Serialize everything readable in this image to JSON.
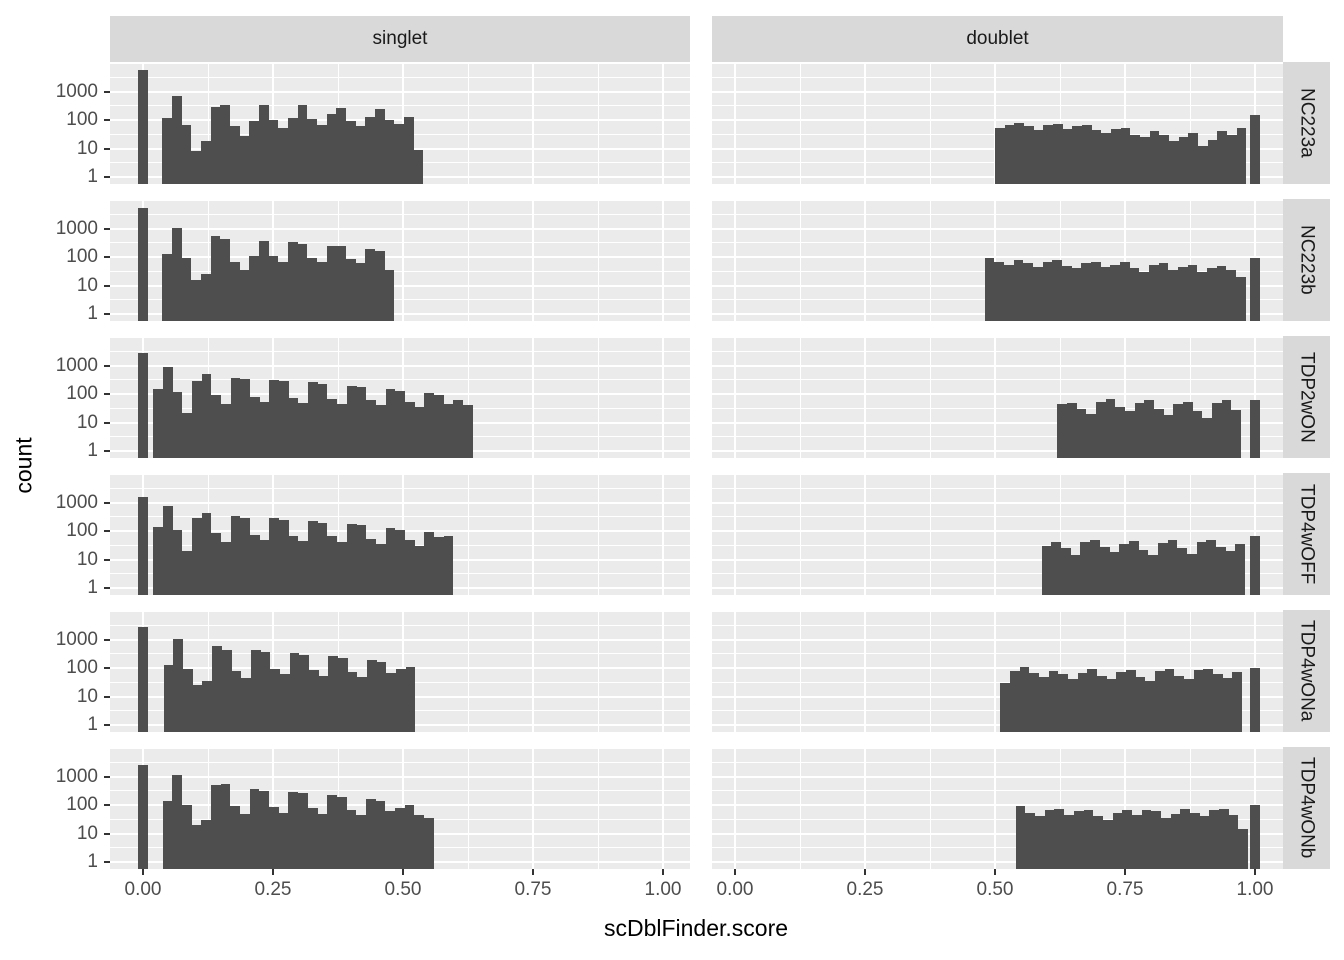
{
  "figure": {
    "x_axis_title": "scDblFinder.score",
    "y_axis_title": "count",
    "col_labels": [
      "singlet",
      "doublet"
    ],
    "row_labels": [
      "NC223a",
      "NC223b",
      "TDP2wON",
      "TDP4wOFF",
      "TDP4wONa",
      "TDP4wONb"
    ],
    "x_tick_labels": [
      "0.00",
      "0.25",
      "0.50",
      "0.75",
      "1.00"
    ],
    "x_tick_values": [
      0,
      0.25,
      0.5,
      0.75,
      1.0
    ],
    "y_tick_labels": [
      "1000",
      "100",
      "10",
      "1"
    ],
    "y_tick_values": [
      1000,
      100,
      10,
      1
    ],
    "colors": {
      "bar": "#4e4e4e",
      "panel_bg": "#ebebeb",
      "strip_bg": "#d9d9d9",
      "grid": "#ffffff",
      "tick_text": "#4d4d4d",
      "title_text": "#000000"
    }
  },
  "chart_data": {
    "type": "bar",
    "subtype": "faceted-histogram",
    "facet_cols": [
      "singlet",
      "doublet"
    ],
    "facet_rows": [
      "NC223a",
      "NC223b",
      "TDP2wON",
      "TDP4wOFF",
      "TDP4wONa",
      "TDP4wONb"
    ],
    "xlabel": "scDblFinder.score",
    "ylabel": "count",
    "y_scale": "log10",
    "ylim": [
      0.56,
      11000
    ],
    "x_axis_range_shown": [
      -0.06,
      1.05
    ],
    "binwidth": 0.0186,
    "major_y_gridlines": [
      1,
      10,
      100,
      1000,
      10000
    ],
    "minor_y_gridlines": [
      3.16,
      31.6,
      316,
      3162
    ],
    "major_x_gridlines": [
      0,
      0.25,
      0.5,
      0.75,
      1.0
    ],
    "minor_x_gridlines": [
      0.125,
      0.375,
      0.625,
      0.875
    ],
    "panels": [
      {
        "row": "NC223a",
        "col": "singlet",
        "zero_spike": 6000,
        "start": 0.037,
        "counts": [
          120,
          700,
          70,
          8,
          18,
          290,
          330,
          60,
          28,
          95,
          330,
          100,
          55,
          115,
          340,
          110,
          65,
          165,
          270,
          90,
          60,
          125,
          240,
          100,
          75,
          130,
          9
        ]
      },
      {
        "row": "NC223a",
        "col": "doublet",
        "one_spike": 150,
        "start": 0.5,
        "counts": [
          55,
          70,
          80,
          60,
          45,
          70,
          75,
          50,
          60,
          70,
          45,
          35,
          50,
          55,
          30,
          25,
          40,
          30,
          18,
          25,
          35,
          12,
          20,
          40,
          30,
          55
        ]
      },
      {
        "row": "NC223b",
        "col": "singlet",
        "zero_spike": 5500,
        "start": 0.037,
        "counts": [
          130,
          1100,
          90,
          16,
          25,
          550,
          420,
          70,
          35,
          110,
          380,
          110,
          70,
          330,
          300,
          95,
          65,
          240,
          250,
          85,
          60,
          190,
          170,
          35
        ]
      },
      {
        "row": "NC223b",
        "col": "doublet",
        "one_spike": 90,
        "start": 0.48,
        "counts": [
          90,
          70,
          55,
          80,
          60,
          45,
          70,
          80,
          50,
          40,
          60,
          70,
          45,
          55,
          65,
          40,
          30,
          55,
          60,
          35,
          45,
          55,
          30,
          40,
          50,
          35,
          20
        ]
      },
      {
        "row": "TDP2wON",
        "col": "singlet",
        "zero_spike": 2800,
        "start": 0.02,
        "counts": [
          150,
          900,
          120,
          22,
          300,
          500,
          90,
          45,
          380,
          330,
          80,
          55,
          310,
          280,
          75,
          50,
          260,
          230,
          70,
          45,
          200,
          180,
          60,
          40,
          150,
          130,
          55,
          35,
          110,
          90,
          45,
          60,
          40
        ]
      },
      {
        "row": "TDP2wON",
        "col": "doublet",
        "one_spike": 60,
        "start": 0.62,
        "counts": [
          45,
          50,
          30,
          20,
          55,
          65,
          35,
          25,
          50,
          60,
          30,
          18,
          45,
          55,
          25,
          15,
          50,
          60,
          28
        ]
      },
      {
        "row": "TDP4wOFF",
        "col": "singlet",
        "zero_spike": 1600,
        "start": 0.02,
        "counts": [
          140,
          800,
          110,
          20,
          280,
          450,
          85,
          40,
          340,
          300,
          75,
          50,
          280,
          250,
          70,
          45,
          230,
          200,
          65,
          40,
          180,
          160,
          55,
          35,
          130,
          110,
          50,
          30,
          90,
          60,
          65
        ]
      },
      {
        "row": "TDP4wOFF",
        "col": "doublet",
        "one_spike": 70,
        "start": 0.59,
        "counts": [
          30,
          40,
          25,
          15,
          40,
          50,
          28,
          18,
          35,
          45,
          22,
          14,
          38,
          48,
          25,
          16,
          40,
          50,
          28,
          20,
          35
        ]
      },
      {
        "row": "TDP4wONa",
        "col": "singlet",
        "zero_spike": 2800,
        "start": 0.04,
        "counts": [
          130,
          1100,
          95,
          25,
          35,
          600,
          450,
          80,
          45,
          420,
          360,
          90,
          60,
          330,
          290,
          85,
          55,
          260,
          220,
          75,
          50,
          200,
          170,
          65,
          90,
          110
        ]
      },
      {
        "row": "TDP4wONa",
        "col": "doublet",
        "one_spike": 100,
        "start": 0.51,
        "counts": [
          30,
          80,
          110,
          70,
          50,
          80,
          60,
          40,
          70,
          90,
          55,
          40,
          75,
          85,
          50,
          35,
          80,
          90,
          55,
          40,
          85,
          95,
          60,
          45,
          75
        ]
      },
      {
        "row": "TDP4wONb",
        "col": "singlet",
        "zero_spike": 2600,
        "start": 0.038,
        "counts": [
          140,
          1200,
          100,
          20,
          30,
          520,
          560,
          90,
          50,
          380,
          320,
          85,
          55,
          300,
          260,
          80,
          50,
          230,
          190,
          70,
          45,
          170,
          140,
          60,
          80,
          100,
          45,
          35
        ]
      },
      {
        "row": "TDP4wONb",
        "col": "doublet",
        "one_spike": 100,
        "start": 0.54,
        "counts": [
          90,
          55,
          40,
          65,
          75,
          45,
          60,
          70,
          40,
          30,
          55,
          65,
          45,
          70,
          60,
          35,
          50,
          75,
          55,
          40,
          65,
          75,
          45,
          15
        ]
      }
    ]
  }
}
